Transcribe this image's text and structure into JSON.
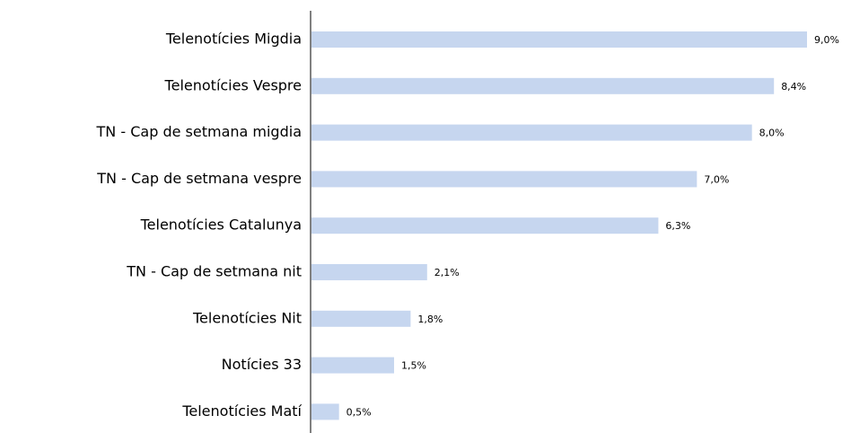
{
  "chart_data": {
    "type": "hbar",
    "categories": [
      "Telenotícies Migdia",
      "Telenotícies Vespre",
      "TN - Cap de setmana migdia",
      "TN - Cap de setmana vespre",
      "Telenotícies Catalunya",
      "TN - Cap de setmana nit",
      "Telenotícies Nit",
      "Notícies 33",
      "Telenotícies Matí"
    ],
    "values": [
      9.0,
      8.4,
      8.0,
      7.0,
      6.3,
      2.1,
      1.8,
      1.5,
      0.5
    ],
    "value_labels": [
      "9,0%",
      "8,4%",
      "8,0%",
      "7,0%",
      "6,3%",
      "2,1%",
      "1,8%",
      "1,5%",
      "0,5%"
    ],
    "color": "#c6d6ef"
  }
}
